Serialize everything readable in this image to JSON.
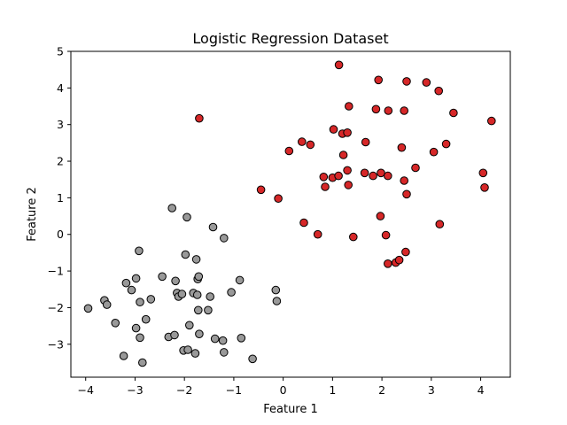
{
  "chart_data": {
    "type": "scatter",
    "title": "Logistic Regression Dataset",
    "xlabel": "Feature 1",
    "ylabel": "Feature 2",
    "xlim": [
      -4.3,
      4.6
    ],
    "ylim": [
      -3.9,
      5.0
    ],
    "xticks": [
      -4,
      -3,
      -2,
      -1,
      0,
      1,
      2,
      3,
      4
    ],
    "yticks": [
      -3,
      -2,
      -1,
      0,
      1,
      2,
      3,
      4,
      5
    ],
    "grid": false,
    "legend": "none",
    "series": [
      {
        "color": "#999999",
        "edgecolor": "#000000",
        "points": [
          [
            -3.95,
            -2.02
          ],
          [
            -3.62,
            -1.8
          ],
          [
            -3.57,
            -1.92
          ],
          [
            -3.4,
            -2.42
          ],
          [
            -3.23,
            -3.32
          ],
          [
            -3.18,
            -1.33
          ],
          [
            -3.07,
            -1.52
          ],
          [
            -2.98,
            -1.2
          ],
          [
            -2.98,
            -2.56
          ],
          [
            -2.92,
            -0.45
          ],
          [
            -2.9,
            -1.85
          ],
          [
            -2.9,
            -2.82
          ],
          [
            -2.85,
            -3.5
          ],
          [
            -2.78,
            -2.32
          ],
          [
            -2.68,
            -1.77
          ],
          [
            -2.45,
            -1.15
          ],
          [
            -2.32,
            -2.8
          ],
          [
            -2.25,
            0.72
          ],
          [
            -2.2,
            -2.75
          ],
          [
            -2.18,
            -1.27
          ],
          [
            -2.15,
            -1.6
          ],
          [
            -2.12,
            -1.7
          ],
          [
            -2.05,
            -1.63
          ],
          [
            -2.02,
            -3.17
          ],
          [
            -1.98,
            -0.55
          ],
          [
            -1.95,
            0.47
          ],
          [
            -1.93,
            -3.15
          ],
          [
            -1.9,
            -2.48
          ],
          [
            -1.82,
            -1.6
          ],
          [
            -1.78,
            -3.25
          ],
          [
            -1.76,
            -0.68
          ],
          [
            -1.74,
            -1.65
          ],
          [
            -1.73,
            -1.22
          ],
          [
            -1.72,
            -2.07
          ],
          [
            -1.71,
            -1.15
          ],
          [
            -1.7,
            -2.72
          ],
          [
            -1.52,
            -2.07
          ],
          [
            -1.48,
            -1.7
          ],
          [
            -1.42,
            0.2
          ],
          [
            -1.38,
            -2.85
          ],
          [
            -1.22,
            -2.9
          ],
          [
            -1.2,
            -0.1
          ],
          [
            -1.2,
            -3.22
          ],
          [
            -1.05,
            -1.58
          ],
          [
            -0.88,
            -1.25
          ],
          [
            -0.85,
            -2.83
          ],
          [
            -0.62,
            -3.4
          ],
          [
            -0.15,
            -1.52
          ],
          [
            -0.13,
            -1.82
          ]
        ]
      },
      {
        "color": "#d62728",
        "edgecolor": "#000000",
        "points": [
          [
            -1.7,
            3.17
          ],
          [
            -0.45,
            1.22
          ],
          [
            -0.1,
            0.98
          ],
          [
            0.12,
            2.28
          ],
          [
            0.38,
            2.53
          ],
          [
            0.42,
            0.32
          ],
          [
            0.55,
            2.45
          ],
          [
            0.7,
            0.0
          ],
          [
            0.82,
            1.57
          ],
          [
            0.85,
            1.3
          ],
          [
            1.0,
            1.55
          ],
          [
            1.02,
            2.87
          ],
          [
            1.12,
            1.6
          ],
          [
            1.13,
            4.63
          ],
          [
            1.2,
            2.75
          ],
          [
            1.22,
            2.17
          ],
          [
            1.3,
            2.78
          ],
          [
            1.3,
            1.75
          ],
          [
            1.32,
            1.35
          ],
          [
            1.33,
            3.5
          ],
          [
            1.42,
            -0.07
          ],
          [
            1.65,
            1.68
          ],
          [
            1.67,
            2.52
          ],
          [
            1.82,
            1.6
          ],
          [
            1.88,
            3.42
          ],
          [
            1.93,
            4.22
          ],
          [
            1.97,
            0.5
          ],
          [
            1.98,
            1.68
          ],
          [
            2.08,
            -0.02
          ],
          [
            2.12,
            -0.8
          ],
          [
            2.12,
            1.6
          ],
          [
            2.13,
            3.38
          ],
          [
            2.28,
            -0.77
          ],
          [
            2.35,
            -0.7
          ],
          [
            2.4,
            2.37
          ],
          [
            2.45,
            1.47
          ],
          [
            2.45,
            3.38
          ],
          [
            2.48,
            -0.48
          ],
          [
            2.5,
            1.1
          ],
          [
            2.5,
            4.18
          ],
          [
            2.68,
            1.82
          ],
          [
            2.9,
            4.15
          ],
          [
            3.05,
            2.25
          ],
          [
            3.15,
            3.92
          ],
          [
            3.17,
            0.28
          ],
          [
            3.3,
            2.47
          ],
          [
            3.45,
            3.32
          ],
          [
            4.05,
            1.68
          ],
          [
            4.08,
            1.28
          ],
          [
            4.22,
            3.1
          ]
        ]
      }
    ]
  }
}
